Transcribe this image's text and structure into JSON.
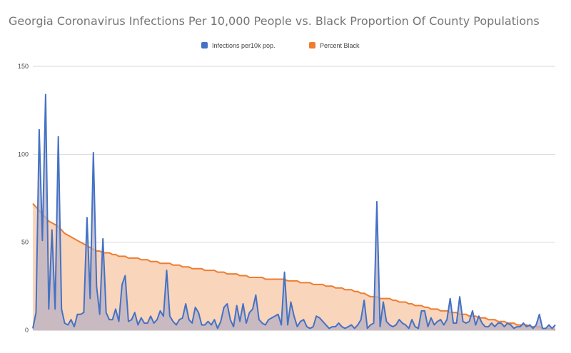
{
  "chart_data": {
    "type": "area",
    "title": "Georgia Coronavirus Infections Per 10,000 People vs. Black Proportion Of County Populations",
    "xlabel": "",
    "ylabel": "",
    "ylim": [
      0,
      150
    ],
    "yticks": [
      "0",
      "50",
      "100",
      "150"
    ],
    "grid": true,
    "legend_position": "top",
    "series": [
      {
        "name": "Infections per10k pop.",
        "color": "#4472c4",
        "fill": "#b8b0c4",
        "values": [
          1,
          10,
          114,
          51,
          134,
          12,
          57,
          12,
          110,
          12,
          4,
          3,
          6,
          2,
          9,
          9,
          10,
          64,
          18,
          101,
          25,
          9,
          52,
          10,
          6,
          6,
          12,
          5,
          26,
          31,
          5,
          6,
          10,
          3,
          7,
          4,
          4,
          8,
          4,
          6,
          11,
          8,
          34,
          8,
          5,
          3,
          6,
          7,
          15,
          6,
          4,
          13,
          10,
          3,
          3,
          5,
          3,
          6,
          1,
          5,
          13,
          15,
          6,
          2,
          14,
          5,
          15,
          4,
          10,
          12,
          20,
          6,
          4,
          3,
          6,
          7,
          8,
          9,
          3,
          33,
          3,
          16,
          8,
          2,
          5,
          6,
          2,
          1,
          2,
          8,
          7,
          5,
          3,
          1,
          2,
          2,
          4,
          2,
          1,
          2,
          3,
          1,
          3,
          6,
          17,
          1,
          3,
          4,
          73,
          2,
          16,
          5,
          3,
          2,
          3,
          6,
          4,
          3,
          1,
          6,
          2,
          1,
          11,
          11,
          2,
          7,
          3,
          5,
          6,
          3,
          6,
          18,
          4,
          4,
          19,
          5,
          4,
          5,
          11,
          3,
          8,
          4,
          2,
          2,
          4,
          2,
          4,
          4,
          2,
          4,
          3,
          1,
          2,
          2,
          4,
          2,
          3,
          1,
          3,
          9,
          1,
          1,
          3,
          1,
          3
        ]
      },
      {
        "name": "Percent Black",
        "color": "#ed7d31",
        "fill": "#f9d5bc",
        "values": [
          72,
          70,
          68,
          66,
          64,
          62,
          61,
          60,
          59,
          57,
          55,
          54,
          53,
          52,
          51,
          50,
          49,
          48,
          47,
          46,
          45,
          45,
          44,
          44,
          44,
          43,
          43,
          42,
          42,
          42,
          41,
          41,
          41,
          41,
          40,
          40,
          40,
          39,
          39,
          39,
          38,
          38,
          38,
          38,
          37,
          37,
          37,
          36,
          36,
          36,
          35,
          35,
          35,
          35,
          34,
          34,
          34,
          34,
          33,
          33,
          33,
          32,
          32,
          32,
          32,
          31,
          31,
          31,
          30,
          30,
          30,
          30,
          30,
          29,
          29,
          29,
          29,
          29,
          29,
          29,
          28,
          28,
          28,
          28,
          27,
          27,
          27,
          27,
          26,
          26,
          26,
          26,
          25,
          25,
          25,
          24,
          24,
          24,
          23,
          23,
          23,
          22,
          22,
          21,
          21,
          20,
          19,
          19,
          19,
          18,
          18,
          18,
          18,
          17,
          17,
          16,
          16,
          16,
          15,
          15,
          14,
          14,
          14,
          13,
          13,
          12,
          12,
          12,
          11,
          11,
          11,
          10,
          10,
          10,
          9,
          9,
          9,
          8,
          8,
          8,
          7,
          7,
          7,
          6,
          6,
          6,
          5,
          5,
          5,
          4,
          4,
          4,
          3,
          3,
          3,
          3,
          2,
          2,
          2,
          2,
          1,
          1,
          1,
          1,
          0
        ]
      }
    ]
  }
}
